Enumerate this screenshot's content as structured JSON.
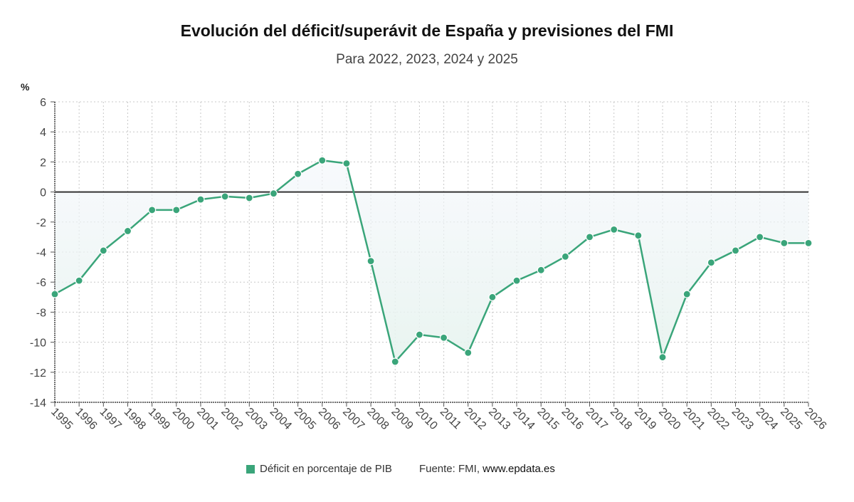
{
  "chart_data": {
    "type": "line",
    "title": "Evolución del déficit/superávit de España y previsiones del FMI",
    "subtitle": "Para 2022, 2023, 2024 y 2025",
    "ylabel": "%",
    "xlabel": "",
    "ylim": [
      -14,
      6
    ],
    "yticks": [
      6,
      4,
      2,
      0,
      -2,
      -4,
      -6,
      -8,
      -10,
      -12,
      -14
    ],
    "grid": true,
    "legend_position": "bottom",
    "x": [
      "1995",
      "1996",
      "1997",
      "1998",
      "1999",
      "2000",
      "2001",
      "2002",
      "2003",
      "2004",
      "2005",
      "2006",
      "2007",
      "2008",
      "2009",
      "2010",
      "2011",
      "2012",
      "2013",
      "2014",
      "2015",
      "2016",
      "2017",
      "2018",
      "2019",
      "2020",
      "2021",
      "2022",
      "2023",
      "2024",
      "2025",
      "2026"
    ],
    "series": [
      {
        "name": "Déficit en porcentaje de PIB",
        "color": "#3aa57a",
        "values": [
          -6.8,
          -5.9,
          -3.9,
          -2.6,
          -1.2,
          -1.2,
          -0.5,
          -0.3,
          -0.4,
          -0.1,
          1.2,
          2.1,
          1.9,
          -4.6,
          -11.3,
          -9.5,
          -9.7,
          -10.7,
          -7.0,
          -5.9,
          -5.2,
          -4.3,
          -3.0,
          -2.5,
          -2.9,
          -11.0,
          -6.8,
          -4.7,
          -3.9,
          -3.0,
          -3.4,
          -3.4
        ]
      }
    ]
  },
  "legend": {
    "label": "Déficit en porcentaje de PIB",
    "source_prefix": "Fuente: FMI, ",
    "source_link": "www.epdata.es"
  }
}
